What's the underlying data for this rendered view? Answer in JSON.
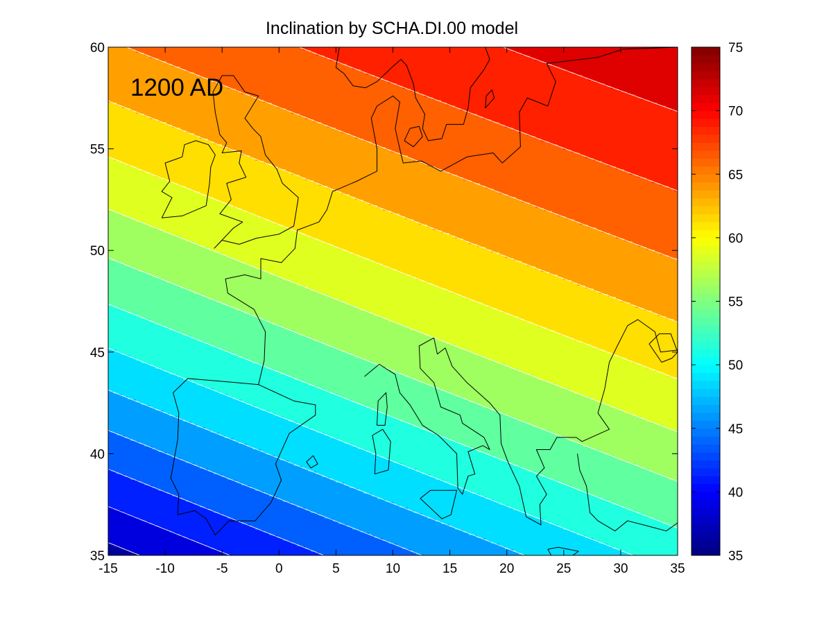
{
  "chart_data": {
    "type": "heatmap",
    "title": "Inclination by SCHA.DI.00 model",
    "annotation": "1200 AD",
    "xlim": [
      -15,
      35
    ],
    "ylim": [
      35,
      60
    ],
    "x_ticks": [
      "-15",
      "-10",
      "-5",
      "0",
      "5",
      "10",
      "15",
      "20",
      "25",
      "30",
      "35"
    ],
    "y_ticks": [
      "35",
      "40",
      "45",
      "50",
      "55",
      "60"
    ],
    "colorbar": {
      "range": [
        35,
        75
      ],
      "ticks": [
        "35",
        "40",
        "45",
        "50",
        "55",
        "60",
        "65",
        "70",
        "75"
      ],
      "colormap": "jet"
    },
    "contour_step": 2.5,
    "contour_line_color": "#ffffff",
    "coastline_color": "#000000",
    "field_samples": [
      {
        "lon": -15,
        "lat": 60,
        "inclination": 65.2
      },
      {
        "lon": -15,
        "lat": 50,
        "inclination": 55.5
      },
      {
        "lon": -15,
        "lat": 40,
        "inclination": 43.0
      },
      {
        "lon": -15,
        "lat": 35,
        "inclination": 36.5
      },
      {
        "lon": 10,
        "lat": 60,
        "inclination": 67.5
      },
      {
        "lon": 10,
        "lat": 50,
        "inclination": 61.0
      },
      {
        "lon": 10,
        "lat": 40,
        "inclination": 51.5
      },
      {
        "lon": 35,
        "lat": 60,
        "inclination": 72.5
      },
      {
        "lon": 35,
        "lat": 50,
        "inclination": 65.0
      },
      {
        "lon": 35,
        "lat": 40,
        "inclination": 56.0
      },
      {
        "lon": 35,
        "lat": 35,
        "inclination": 51.0
      }
    ],
    "coastlines": [
      {
        "name": "Great Britain",
        "points": [
          [
            -5.7,
            50.1
          ],
          [
            -5.0,
            50.5
          ],
          [
            -3.5,
            50.3
          ],
          [
            -2.0,
            50.6
          ],
          [
            0.0,
            50.8
          ],
          [
            1.3,
            51.2
          ],
          [
            1.7,
            52.6
          ],
          [
            0.3,
            53.3
          ],
          [
            -0.2,
            54.0
          ],
          [
            -1.2,
            54.7
          ],
          [
            -1.6,
            55.6
          ],
          [
            -2.3,
            56.0
          ],
          [
            -3.0,
            56.5
          ],
          [
            -1.8,
            57.6
          ],
          [
            -3.0,
            57.8
          ],
          [
            -4.0,
            58.6
          ],
          [
            -5.0,
            58.6
          ],
          [
            -5.8,
            57.8
          ],
          [
            -5.6,
            56.8
          ],
          [
            -5.2,
            55.7
          ],
          [
            -4.6,
            55.3
          ],
          [
            -5.0,
            54.8
          ],
          [
            -3.3,
            54.9
          ],
          [
            -3.5,
            54.3
          ],
          [
            -2.9,
            53.6
          ],
          [
            -4.6,
            53.3
          ],
          [
            -4.2,
            52.5
          ],
          [
            -5.2,
            51.8
          ],
          [
            -3.2,
            51.4
          ],
          [
            -4.0,
            51.1
          ],
          [
            -5.7,
            50.1
          ]
        ]
      },
      {
        "name": "Ireland",
        "points": [
          [
            -10.3,
            51.6
          ],
          [
            -8.5,
            51.7
          ],
          [
            -6.4,
            52.2
          ],
          [
            -6.1,
            53.3
          ],
          [
            -6.0,
            54.1
          ],
          [
            -5.6,
            54.7
          ],
          [
            -6.2,
            55.2
          ],
          [
            -7.3,
            55.4
          ],
          [
            -8.3,
            55.2
          ],
          [
            -8.5,
            54.6
          ],
          [
            -10.0,
            54.3
          ],
          [
            -9.6,
            53.4
          ],
          [
            -10.3,
            52.9
          ],
          [
            -9.4,
            52.6
          ],
          [
            -10.3,
            51.6
          ]
        ]
      },
      {
        "name": "Iberia",
        "points": [
          [
            -1.8,
            43.4
          ],
          [
            -3.8,
            43.5
          ],
          [
            -8.0,
            43.7
          ],
          [
            -9.3,
            43.0
          ],
          [
            -8.8,
            42.0
          ],
          [
            -8.9,
            40.7
          ],
          [
            -9.5,
            38.8
          ],
          [
            -8.8,
            38.0
          ],
          [
            -8.9,
            37.0
          ],
          [
            -7.4,
            37.2
          ],
          [
            -6.4,
            36.8
          ],
          [
            -5.6,
            36.0
          ],
          [
            -4.4,
            36.7
          ],
          [
            -2.1,
            36.7
          ],
          [
            -0.7,
            37.6
          ],
          [
            0.2,
            38.7
          ],
          [
            -0.3,
            39.5
          ],
          [
            0.9,
            41.0
          ],
          [
            3.2,
            41.9
          ],
          [
            3.2,
            42.4
          ],
          [
            1.3,
            42.6
          ],
          [
            -1.8,
            43.4
          ]
        ]
      },
      {
        "name": "Mainland",
        "points": [
          [
            -1.8,
            43.4
          ],
          [
            -1.3,
            44.6
          ],
          [
            -1.2,
            46.0
          ],
          [
            -2.2,
            47.1
          ],
          [
            -4.5,
            47.9
          ],
          [
            -4.7,
            48.6
          ],
          [
            -3.0,
            48.8
          ],
          [
            -1.6,
            48.6
          ],
          [
            -1.6,
            49.6
          ],
          [
            0.2,
            49.4
          ],
          [
            1.4,
            50.1
          ],
          [
            1.6,
            51.0
          ],
          [
            3.5,
            51.4
          ],
          [
            4.2,
            52.0
          ],
          [
            4.7,
            52.9
          ],
          [
            6.8,
            53.4
          ],
          [
            8.6,
            53.9
          ],
          [
            8.6,
            55.0
          ],
          [
            8.1,
            56.5
          ],
          [
            8.6,
            57.1
          ],
          [
            10.0,
            57.6
          ],
          [
            10.6,
            57.3
          ],
          [
            10.2,
            56.0
          ],
          [
            10.6,
            55.0
          ],
          [
            10.9,
            54.3
          ],
          [
            12.5,
            54.4
          ],
          [
            14.2,
            53.9
          ],
          [
            16.5,
            54.6
          ],
          [
            18.8,
            54.8
          ],
          [
            19.6,
            54.3
          ],
          [
            21.2,
            55.1
          ],
          [
            21.1,
            56.8
          ],
          [
            21.8,
            57.5
          ],
          [
            23.6,
            57.1
          ],
          [
            24.3,
            58.3
          ],
          [
            23.5,
            59.2
          ],
          [
            28.0,
            59.5
          ],
          [
            30.2,
            59.9
          ],
          [
            35.0,
            60.0
          ]
        ]
      },
      {
        "name": "Scandinavia",
        "points": [
          [
            5.3,
            60.0
          ],
          [
            5.0,
            59.0
          ],
          [
            5.7,
            58.7
          ],
          [
            6.5,
            58.1
          ],
          [
            7.6,
            58.0
          ],
          [
            8.6,
            58.3
          ],
          [
            9.9,
            59.0
          ],
          [
            10.7,
            59.4
          ],
          [
            11.2,
            59.1
          ],
          [
            11.8,
            58.2
          ],
          [
            12.0,
            57.5
          ],
          [
            12.8,
            56.7
          ],
          [
            12.6,
            56.0
          ],
          [
            13.1,
            55.4
          ],
          [
            14.3,
            55.5
          ],
          [
            14.7,
            56.2
          ],
          [
            16.2,
            56.2
          ],
          [
            16.6,
            57.0
          ],
          [
            16.8,
            58.0
          ],
          [
            18.0,
            58.9
          ],
          [
            18.5,
            59.4
          ],
          [
            18.1,
            60.0
          ]
        ]
      },
      {
        "name": "Zealand",
        "points": [
          [
            11.0,
            55.4
          ],
          [
            11.8,
            55.1
          ],
          [
            12.6,
            55.6
          ],
          [
            12.3,
            56.1
          ],
          [
            11.5,
            56.0
          ],
          [
            11.0,
            55.4
          ]
        ]
      },
      {
        "name": "Gotland",
        "points": [
          [
            18.1,
            57.0
          ],
          [
            18.9,
            57.5
          ],
          [
            18.7,
            57.9
          ],
          [
            18.2,
            57.6
          ],
          [
            18.1,
            57.0
          ]
        ]
      },
      {
        "name": "Italy",
        "points": [
          [
            7.5,
            43.8
          ],
          [
            8.8,
            44.4
          ],
          [
            10.2,
            43.9
          ],
          [
            10.6,
            43.0
          ],
          [
            11.5,
            42.4
          ],
          [
            12.6,
            41.4
          ],
          [
            14.0,
            40.9
          ],
          [
            15.6,
            40.0
          ],
          [
            15.7,
            38.3
          ],
          [
            16.1,
            38.0
          ],
          [
            16.6,
            38.9
          ],
          [
            17.2,
            39.0
          ],
          [
            16.6,
            40.1
          ],
          [
            17.9,
            40.4
          ],
          [
            18.5,
            40.2
          ],
          [
            18.0,
            40.8
          ],
          [
            16.1,
            41.5
          ],
          [
            15.9,
            41.9
          ],
          [
            14.2,
            42.3
          ],
          [
            13.6,
            43.5
          ],
          [
            12.4,
            44.2
          ],
          [
            12.3,
            45.3
          ],
          [
            13.6,
            45.7
          ],
          [
            13.9,
            44.9
          ],
          [
            14.6,
            45.2
          ],
          [
            15.2,
            44.3
          ],
          [
            16.5,
            43.5
          ],
          [
            18.5,
            42.5
          ],
          [
            19.4,
            41.9
          ],
          [
            19.5,
            40.5
          ],
          [
            20.1,
            39.6
          ],
          [
            21.1,
            38.4
          ],
          [
            21.7,
            36.9
          ],
          [
            23.0,
            36.5
          ],
          [
            22.9,
            37.5
          ],
          [
            23.5,
            38.0
          ],
          [
            22.6,
            38.9
          ],
          [
            23.3,
            39.3
          ],
          [
            22.6,
            40.2
          ],
          [
            23.8,
            40.2
          ],
          [
            24.4,
            40.8
          ],
          [
            26.1,
            40.8
          ],
          [
            26.6,
            40.6
          ],
          [
            29.0,
            41.2
          ],
          [
            28.0,
            42.0
          ],
          [
            28.6,
            43.2
          ],
          [
            29.0,
            44.5
          ],
          [
            29.7,
            45.3
          ],
          [
            30.6,
            46.3
          ],
          [
            31.5,
            46.6
          ],
          [
            33.0,
            46.0
          ],
          [
            33.5,
            45.0
          ],
          [
            35.0,
            45.1
          ]
        ]
      },
      {
        "name": "Corsica",
        "points": [
          [
            8.6,
            41.4
          ],
          [
            9.3,
            41.4
          ],
          [
            9.5,
            42.3
          ],
          [
            9.4,
            43.0
          ],
          [
            8.7,
            42.6
          ],
          [
            8.6,
            41.4
          ]
        ]
      },
      {
        "name": "Sardinia",
        "points": [
          [
            8.4,
            39.0
          ],
          [
            9.6,
            39.2
          ],
          [
            9.8,
            40.6
          ],
          [
            9.1,
            41.2
          ],
          [
            8.2,
            40.9
          ],
          [
            8.5,
            40.0
          ],
          [
            8.4,
            39.0
          ]
        ]
      },
      {
        "name": "Sicily",
        "points": [
          [
            12.4,
            37.8
          ],
          [
            13.3,
            38.2
          ],
          [
            15.6,
            38.2
          ],
          [
            15.1,
            37.0
          ],
          [
            14.3,
            36.8
          ],
          [
            12.4,
            37.8
          ]
        ]
      },
      {
        "name": "Crete",
        "points": [
          [
            23.6,
            35.3
          ],
          [
            24.5,
            35.4
          ],
          [
            26.3,
            35.2
          ],
          [
            25.8,
            35.0
          ],
          [
            24.0,
            34.9
          ],
          [
            23.6,
            35.3
          ]
        ]
      },
      {
        "name": "Mallorca",
        "points": [
          [
            2.4,
            39.6
          ],
          [
            3.0,
            39.9
          ],
          [
            3.4,
            39.5
          ],
          [
            2.8,
            39.3
          ],
          [
            2.4,
            39.6
          ]
        ]
      },
      {
        "name": "Anatolia",
        "points": [
          [
            26.2,
            40.0
          ],
          [
            26.4,
            39.2
          ],
          [
            27.0,
            38.4
          ],
          [
            27.3,
            37.1
          ],
          [
            28.0,
            36.7
          ],
          [
            29.5,
            36.2
          ],
          [
            30.6,
            36.7
          ],
          [
            32.0,
            36.5
          ],
          [
            34.0,
            36.2
          ],
          [
            35.0,
            36.6
          ]
        ]
      },
      {
        "name": "Crimea",
        "points": [
          [
            32.5,
            45.4
          ],
          [
            33.6,
            44.5
          ],
          [
            34.5,
            44.7
          ],
          [
            35.0,
            45.0
          ],
          [
            34.4,
            45.9
          ],
          [
            33.4,
            45.9
          ],
          [
            32.5,
            45.4
          ]
        ]
      }
    ]
  }
}
